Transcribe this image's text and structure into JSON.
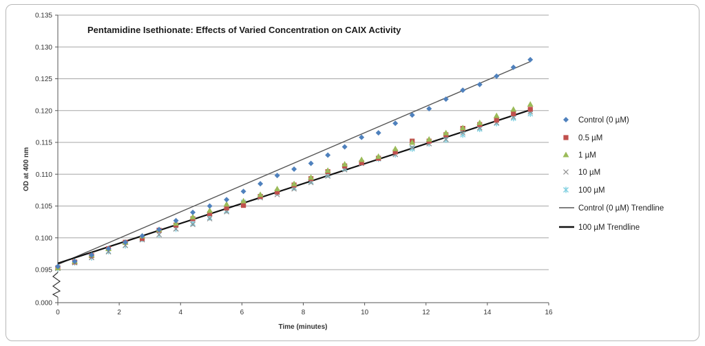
{
  "chart_data": {
    "type": "scatter",
    "title": "Pentamidine Isethionate: Effects of Varied Concentration on CAIX Activity",
    "xlabel": "Time (minutes)",
    "ylabel": "OD at 400 nm",
    "xlim": [
      0,
      16
    ],
    "ylim": [
      0.09,
      0.135
    ],
    "x_ticks": [
      "0",
      "2",
      "4",
      "6",
      "8",
      "10",
      "12",
      "14",
      "16"
    ],
    "y_ticks": [
      "0.000",
      "0.095",
      "0.100",
      "0.105",
      "0.110",
      "0.115",
      "0.120",
      "0.125",
      "0.130",
      "0.135"
    ],
    "axis_break": "0.000 to 0.095",
    "grid": "horizontal",
    "legend_position": "right",
    "x": [
      0,
      0.55,
      1.1,
      1.65,
      2.2,
      2.75,
      3.3,
      3.85,
      4.4,
      4.95,
      5.5,
      6.05,
      6.6,
      7.15,
      7.7,
      8.25,
      8.8,
      9.35,
      9.9,
      10.45,
      11.0,
      11.55,
      12.1,
      12.65,
      13.2,
      13.75,
      14.3,
      14.85,
      15.4
    ],
    "series": [
      {
        "name": "Control (0 µM)",
        "marker": "diamond",
        "color": "#4f81bd",
        "values": [
          0.0955,
          0.0963,
          0.0973,
          0.0983,
          0.0993,
          0.1003,
          0.1013,
          0.1027,
          0.104,
          0.105,
          0.106,
          0.1073,
          0.1085,
          0.1098,
          0.1108,
          0.1117,
          0.113,
          0.1143,
          0.1158,
          0.1165,
          0.118,
          0.1193,
          0.1203,
          0.1218,
          0.1232,
          0.1241,
          0.1254,
          0.1268,
          0.128
        ]
      },
      {
        "name": "0.5 µM",
        "marker": "square",
        "color": "#c0504d",
        "values": [
          0.0953,
          0.0962,
          0.0972,
          0.0983,
          0.0993,
          0.0999,
          0.1012,
          0.102,
          0.103,
          0.1038,
          0.1047,
          0.1051,
          0.1065,
          0.1072,
          0.1083,
          0.1093,
          0.1104,
          0.1113,
          0.1118,
          0.1125,
          0.1135,
          0.1152,
          0.1152,
          0.1162,
          0.1172,
          0.1178,
          0.1185,
          0.1195,
          0.1202
        ]
      },
      {
        "name": "1 µM",
        "marker": "triangle",
        "color": "#9bbb59",
        "values": [
          0.0953,
          0.0963,
          0.0973,
          0.0983,
          0.0993,
          0.1003,
          0.1013,
          0.1023,
          0.1033,
          0.1043,
          0.1053,
          0.1058,
          0.1068,
          0.1077,
          0.1085,
          0.1095,
          0.1106,
          0.1116,
          0.1123,
          0.1128,
          0.114,
          0.115,
          0.1155,
          0.1165,
          0.1173,
          0.1181,
          0.1192,
          0.1202,
          0.121
        ]
      },
      {
        "name": "10 µM",
        "marker": "x",
        "color": "#8c8c8c",
        "values": [
          0.0952,
          0.0961,
          0.0969,
          0.0978,
          0.0988,
          0.0997,
          0.1005,
          0.1014,
          0.1021,
          0.103,
          0.1041,
          0.1054,
          0.1063,
          0.1068,
          0.1077,
          0.1087,
          0.1097,
          0.1107,
          0.1117,
          0.1125,
          0.1131,
          0.1142,
          0.1148,
          0.1155,
          0.1165,
          0.1173,
          0.1181,
          0.119,
          0.1198
        ]
      },
      {
        "name": "100 µM",
        "marker": "asterisk",
        "color": "#7fcfe0",
        "values": [
          0.0952,
          0.0961,
          0.0969,
          0.0979,
          0.0988,
          0.0998,
          0.1005,
          0.1014,
          0.1023,
          0.1032,
          0.1043,
          0.1056,
          0.1065,
          0.1071,
          0.1079,
          0.1089,
          0.1099,
          0.1109,
          0.1118,
          0.1124,
          0.1131,
          0.114,
          0.1148,
          0.1154,
          0.1162,
          0.1171,
          0.118,
          0.1188,
          0.1195
        ]
      }
    ],
    "trendlines": [
      {
        "name": "Control (0 µM) Trendline",
        "color": "#555555",
        "x": [
          0,
          15.4
        ],
        "y": [
          0.0958,
          0.1277
        ]
      },
      {
        "name": "100 µM Trendline",
        "color": "#111111",
        "x": [
          0,
          15.4
        ],
        "y": [
          0.096,
          0.1201
        ]
      }
    ]
  }
}
